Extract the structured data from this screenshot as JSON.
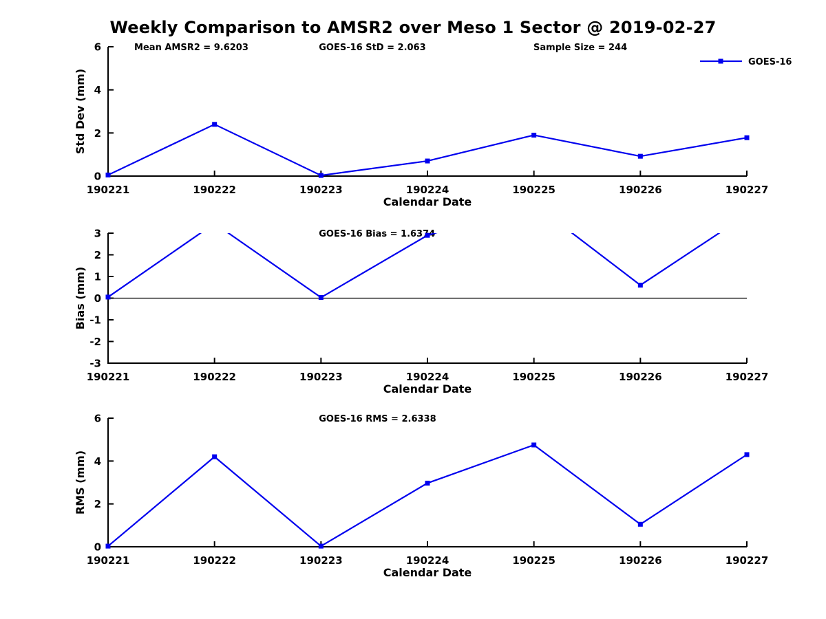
{
  "title": "Weekly Comparison to AMSR2 over Meso 1 Sector @ 2019-02-27",
  "legend": {
    "label": "GOES-16"
  },
  "colors": {
    "series": "#0000EE",
    "axis": "#000000",
    "background": "#FFFFFF"
  },
  "chart_data": [
    {
      "type": "line",
      "id": "std-dev",
      "ylabel": "Std Dev (mm)",
      "xlabel": "Calendar Date",
      "ylim": [
        0,
        6
      ],
      "yticks": [
        0,
        2,
        4,
        6
      ],
      "categories": [
        "190221",
        "190222",
        "190223",
        "190224",
        "190225",
        "190226",
        "190227"
      ],
      "series": [
        {
          "name": "GOES-16",
          "values": [
            0.05,
            2.4,
            0.03,
            0.7,
            1.9,
            0.92,
            1.78
          ]
        }
      ],
      "annotations": [
        {
          "text": "Mean AMSR2 = 9.6203",
          "xfrac": 0.041
        },
        {
          "text": "GOES-16 StD = 2.063",
          "xfrac": 0.33
        },
        {
          "text": "Sample Size = 244",
          "xfrac": 0.666
        }
      ],
      "zero_line": false,
      "grid": false,
      "legend_position": "top-right-outside-plot"
    },
    {
      "type": "line",
      "id": "bias",
      "ylabel": "Bias (mm)",
      "xlabel": "Calendar Date",
      "ylim": [
        -3,
        3
      ],
      "yticks": [
        3,
        2,
        1,
        0,
        -1,
        -2,
        -3
      ],
      "categories": [
        "190221",
        "190222",
        "190223",
        "190224",
        "190225",
        "190226",
        "190227"
      ],
      "series": [
        {
          "name": "GOES-16",
          "values": [
            0.05,
            3.45,
            0.03,
            2.9,
            4.35,
            0.6,
            3.85
          ]
        }
      ],
      "annotations": [
        {
          "text": "GOES-16 Bias  = 1.6374",
          "xfrac": 0.33
        }
      ],
      "zero_line": true,
      "grid": false,
      "note": "peaks at 190222, 190225, 190227 exceed ylim and are clipped at +3"
    },
    {
      "type": "line",
      "id": "rms",
      "ylabel": "RMS (mm)",
      "xlabel": "Calendar Date",
      "ylim": [
        0,
        6
      ],
      "yticks": [
        0,
        2,
        4,
        6
      ],
      "categories": [
        "190221",
        "190222",
        "190223",
        "190224",
        "190225",
        "190226",
        "190227"
      ],
      "series": [
        {
          "name": "GOES-16",
          "values": [
            0.03,
            4.2,
            0.03,
            2.97,
            4.75,
            1.05,
            4.3
          ]
        }
      ],
      "annotations": [
        {
          "text": "GOES-16 RMS = 2.6338",
          "xfrac": 0.33
        }
      ],
      "zero_line": false,
      "grid": false
    }
  ]
}
